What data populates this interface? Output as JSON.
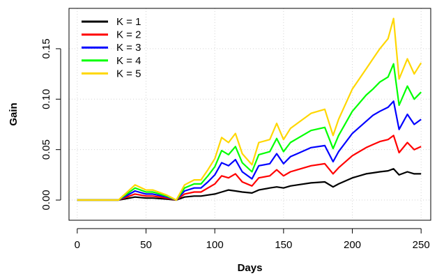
{
  "chart_data": {
    "type": "line",
    "title": "",
    "xlabel": "Days",
    "ylabel": "Gain",
    "xlim": [
      -6,
      257
    ],
    "ylim": [
      -0.02,
      0.19
    ],
    "xticks": [
      0,
      50,
      100,
      150,
      200,
      250
    ],
    "yticks": [
      0.0,
      0.05,
      0.1,
      0.15
    ],
    "xtick_labels": [
      "0",
      "50",
      "100",
      "150",
      "200",
      "250"
    ],
    "ytick_labels": [
      "0.00",
      "0.05",
      "0.10",
      "0.15"
    ],
    "grid": true,
    "legend_position": "top-left",
    "series": [
      {
        "name": "K = 1",
        "color": "#000000",
        "x": [
          0,
          10,
          20,
          30,
          38,
          42,
          50,
          55,
          65,
          72,
          78,
          85,
          90,
          95,
          100,
          105,
          110,
          115,
          120,
          127,
          132,
          140,
          145,
          150,
          155,
          160,
          170,
          180,
          186,
          190,
          200,
          210,
          215,
          220,
          226,
          230,
          234,
          240,
          245,
          250
        ],
        "y": [
          0.0,
          0.0,
          0.0,
          0.0,
          0.002,
          0.003,
          0.002,
          0.002,
          0.001,
          0.0,
          0.003,
          0.004,
          0.004,
          0.005,
          0.006,
          0.008,
          0.01,
          0.009,
          0.008,
          0.007,
          0.01,
          0.012,
          0.013,
          0.012,
          0.014,
          0.015,
          0.017,
          0.018,
          0.013,
          0.016,
          0.022,
          0.026,
          0.027,
          0.028,
          0.029,
          0.031,
          0.025,
          0.028,
          0.026,
          0.026
        ]
      },
      {
        "name": "K = 2",
        "color": "#ff0000",
        "x": [
          0,
          10,
          20,
          30,
          38,
          42,
          50,
          55,
          65,
          72,
          78,
          85,
          90,
          95,
          100,
          105,
          110,
          115,
          120,
          127,
          132,
          140,
          145,
          150,
          155,
          160,
          170,
          180,
          186,
          190,
          200,
          210,
          215,
          220,
          226,
          230,
          234,
          240,
          245,
          250
        ],
        "y": [
          0.0,
          0.0,
          0.0,
          0.0,
          0.004,
          0.006,
          0.004,
          0.004,
          0.002,
          0.0,
          0.006,
          0.008,
          0.008,
          0.012,
          0.016,
          0.024,
          0.022,
          0.026,
          0.018,
          0.014,
          0.022,
          0.024,
          0.03,
          0.024,
          0.028,
          0.03,
          0.034,
          0.036,
          0.026,
          0.032,
          0.044,
          0.052,
          0.055,
          0.058,
          0.06,
          0.064,
          0.047,
          0.057,
          0.05,
          0.053
        ]
      },
      {
        "name": "K = 3",
        "color": "#0000ff",
        "x": [
          0,
          10,
          20,
          30,
          38,
          42,
          50,
          55,
          65,
          72,
          78,
          85,
          90,
          95,
          100,
          105,
          110,
          115,
          120,
          127,
          132,
          140,
          145,
          150,
          155,
          160,
          170,
          180,
          186,
          190,
          200,
          210,
          215,
          220,
          226,
          230,
          234,
          240,
          245,
          250
        ],
        "y": [
          0.0,
          0.0,
          0.0,
          0.0,
          0.006,
          0.009,
          0.006,
          0.006,
          0.003,
          0.0,
          0.009,
          0.012,
          0.012,
          0.018,
          0.025,
          0.037,
          0.034,
          0.04,
          0.028,
          0.021,
          0.034,
          0.036,
          0.046,
          0.036,
          0.043,
          0.046,
          0.052,
          0.054,
          0.038,
          0.048,
          0.066,
          0.078,
          0.084,
          0.088,
          0.092,
          0.098,
          0.07,
          0.085,
          0.075,
          0.08
        ]
      },
      {
        "name": "K = 4",
        "color": "#00ff00",
        "x": [
          0,
          10,
          20,
          30,
          38,
          42,
          50,
          55,
          65,
          72,
          78,
          85,
          90,
          95,
          100,
          105,
          110,
          115,
          120,
          127,
          132,
          140,
          145,
          150,
          155,
          160,
          170,
          180,
          186,
          190,
          200,
          210,
          215,
          220,
          226,
          230,
          234,
          240,
          245,
          250
        ],
        "y": [
          0.0,
          0.0,
          0.0,
          0.0,
          0.008,
          0.012,
          0.008,
          0.008,
          0.004,
          0.0,
          0.012,
          0.016,
          0.016,
          0.024,
          0.033,
          0.049,
          0.045,
          0.053,
          0.037,
          0.028,
          0.045,
          0.048,
          0.061,
          0.048,
          0.057,
          0.061,
          0.069,
          0.072,
          0.051,
          0.064,
          0.088,
          0.104,
          0.11,
          0.117,
          0.122,
          0.135,
          0.094,
          0.113,
          0.1,
          0.107
        ]
      },
      {
        "name": "K = 5",
        "color": "#ffd700",
        "x": [
          0,
          10,
          20,
          30,
          38,
          42,
          50,
          55,
          65,
          72,
          78,
          85,
          90,
          95,
          100,
          105,
          110,
          115,
          120,
          127,
          132,
          140,
          145,
          150,
          155,
          160,
          170,
          180,
          186,
          190,
          200,
          210,
          215,
          220,
          226,
          230,
          234,
          240,
          245,
          250
        ],
        "y": [
          0.0,
          0.0,
          0.0,
          0.0,
          0.01,
          0.015,
          0.01,
          0.01,
          0.005,
          0.0,
          0.015,
          0.02,
          0.02,
          0.03,
          0.041,
          0.062,
          0.057,
          0.066,
          0.046,
          0.035,
          0.057,
          0.06,
          0.076,
          0.06,
          0.071,
          0.076,
          0.086,
          0.09,
          0.064,
          0.08,
          0.11,
          0.13,
          0.14,
          0.15,
          0.16,
          0.18,
          0.12,
          0.14,
          0.125,
          0.136
        ]
      }
    ]
  }
}
